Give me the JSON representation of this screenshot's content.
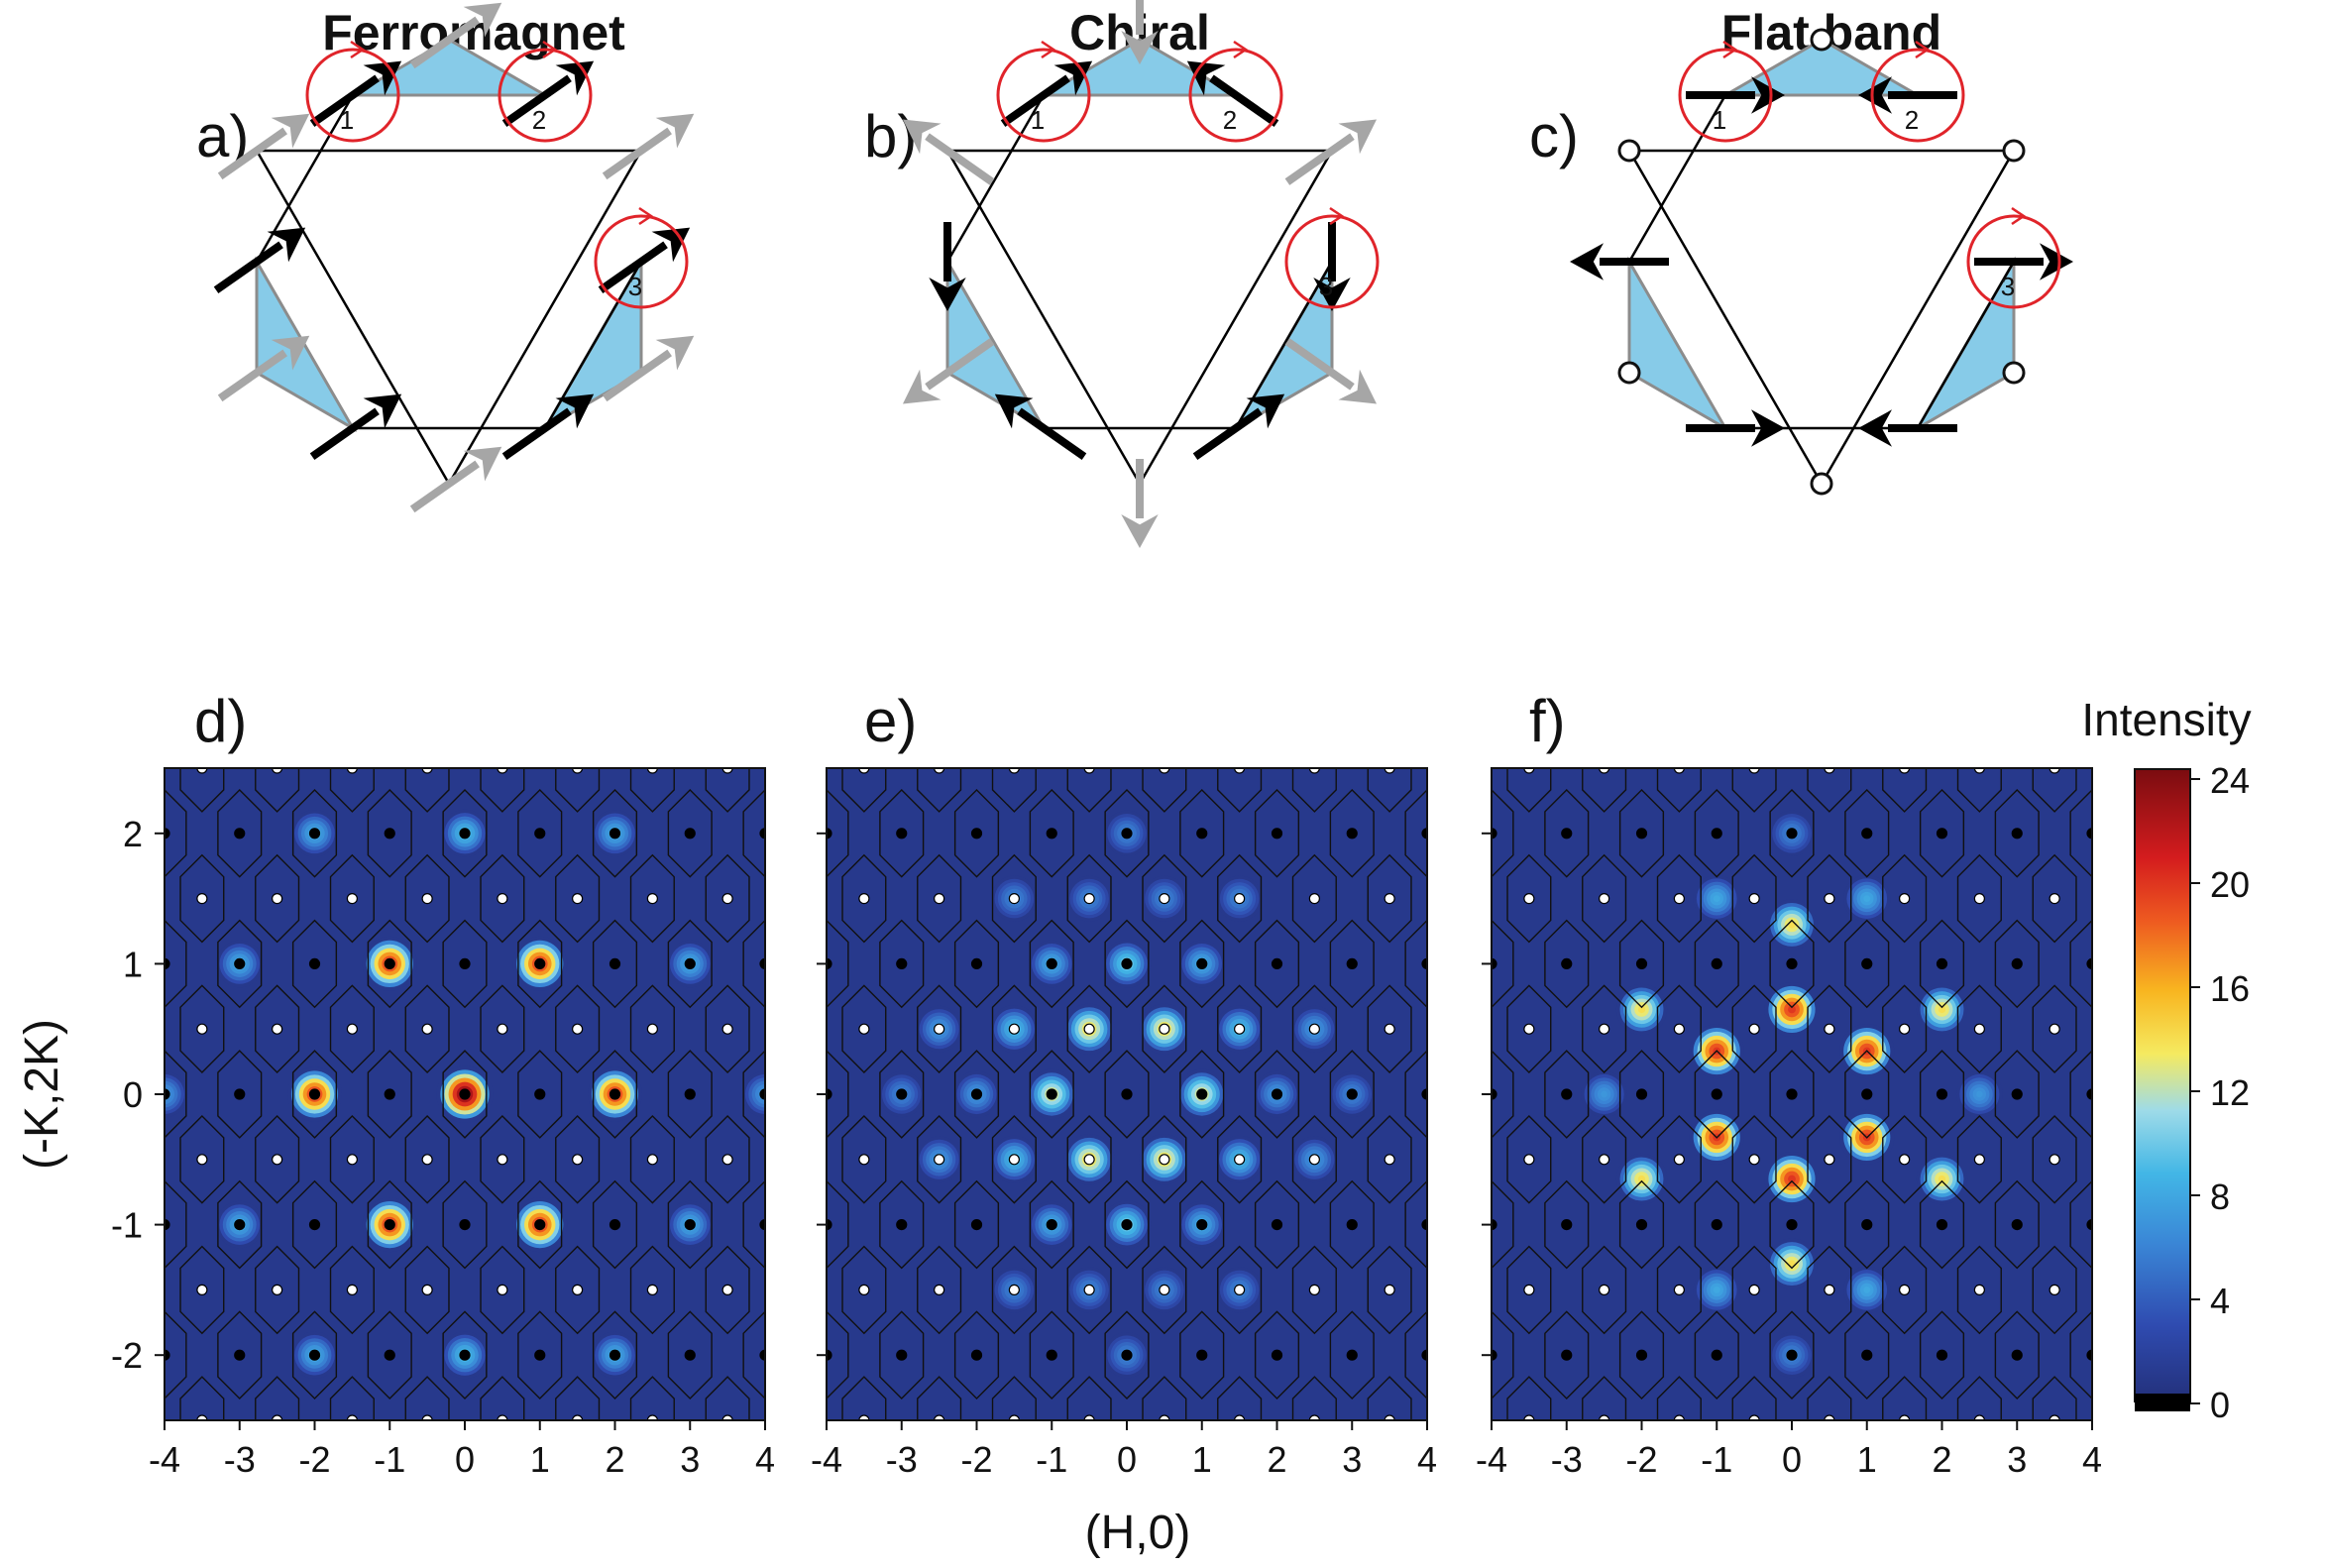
{
  "columns": [
    {
      "title": "Ferromagnet",
      "top_label": "a)",
      "bottom_label": "d)",
      "mode": "ferro"
    },
    {
      "title": "Chiral",
      "top_label": "b)",
      "bottom_label": "e)",
      "mode": "chiral"
    },
    {
      "title": "Flat band",
      "top_label": "c)",
      "bottom_label": "f)",
      "mode": "flat"
    }
  ],
  "site_labels": [
    "1",
    "2",
    "3"
  ],
  "colors": {
    "triangle_fill": "#87cbe8",
    "triangle_edge": "#8c8c8c",
    "lattice_line": "#000000",
    "moment_black": "#000000",
    "moment_gray": "#a6a6a6",
    "precession_circle": "#e0242a",
    "background": "#ffffff"
  },
  "chart_data": [
    {
      "type": "heatmap",
      "panel": "d)",
      "xlabel": "(H,0)",
      "ylabel": "(-K,2K)",
      "xlim": [
        -4,
        4
      ],
      "ylim": [
        -2.5,
        2.5
      ],
      "xticks": [
        -4,
        -3,
        -2,
        -1,
        0,
        1,
        2,
        3,
        4
      ],
      "yticks": [
        -2,
        -1,
        0,
        1,
        2
      ],
      "peaks": [
        {
          "h": 0,
          "k": 0,
          "intensity": 24
        },
        {
          "h": 2,
          "k": 0,
          "intensity": 20
        },
        {
          "h": -2,
          "k": 0,
          "intensity": 20
        },
        {
          "h": 1,
          "k": 1,
          "intensity": 20
        },
        {
          "h": -1,
          "k": 1,
          "intensity": 20
        },
        {
          "h": 1,
          "k": -1,
          "intensity": 20
        },
        {
          "h": -1,
          "k": -1,
          "intensity": 20
        },
        {
          "h": 0,
          "k": 2,
          "intensity": 9
        },
        {
          "h": 0,
          "k": -2,
          "intensity": 9
        },
        {
          "h": 2,
          "k": 2,
          "intensity": 8
        },
        {
          "h": -2,
          "k": 2,
          "intensity": 8
        },
        {
          "h": 2,
          "k": -2,
          "intensity": 8
        },
        {
          "h": -2,
          "k": -2,
          "intensity": 8
        },
        {
          "h": 3,
          "k": 1,
          "intensity": 8
        },
        {
          "h": -3,
          "k": 1,
          "intensity": 8
        },
        {
          "h": 3,
          "k": -1,
          "intensity": 8
        },
        {
          "h": -3,
          "k": -1,
          "intensity": 8
        },
        {
          "h": 4,
          "k": 0,
          "intensity": 7
        },
        {
          "h": -4,
          "k": 0,
          "intensity": 7
        }
      ]
    },
    {
      "type": "heatmap",
      "panel": "e)",
      "xlabel": "(H,0)",
      "ylabel": "(-K,2K)",
      "xlim": [
        -4,
        4
      ],
      "ylim": [
        -2.5,
        2.5
      ],
      "xticks": [
        -4,
        -3,
        -2,
        -1,
        0,
        1,
        2,
        3,
        4
      ],
      "yticks": [
        -2,
        -1,
        0,
        1,
        2
      ],
      "peaks": [
        {
          "h": 1,
          "k": 0,
          "intensity": 13
        },
        {
          "h": -1,
          "k": 0,
          "intensity": 13
        },
        {
          "h": 0.5,
          "k": 0.5,
          "intensity": 14
        },
        {
          "h": -0.5,
          "k": 0.5,
          "intensity": 14
        },
        {
          "h": 0.5,
          "k": -0.5,
          "intensity": 14
        },
        {
          "h": -0.5,
          "k": -0.5,
          "intensity": 14
        },
        {
          "h": 0,
          "k": 1,
          "intensity": 10
        },
        {
          "h": 0,
          "k": -1,
          "intensity": 10
        },
        {
          "h": 1.5,
          "k": 0.5,
          "intensity": 9
        },
        {
          "h": -1.5,
          "k": 0.5,
          "intensity": 9
        },
        {
          "h": 1.5,
          "k": -0.5,
          "intensity": 9
        },
        {
          "h": -1.5,
          "k": -0.5,
          "intensity": 9
        },
        {
          "h": 1,
          "k": 1,
          "intensity": 8
        },
        {
          "h": -1,
          "k": 1,
          "intensity": 8
        },
        {
          "h": 1,
          "k": -1,
          "intensity": 8
        },
        {
          "h": -1,
          "k": -1,
          "intensity": 8
        },
        {
          "h": 2,
          "k": 0,
          "intensity": 7
        },
        {
          "h": -2,
          "k": 0,
          "intensity": 7
        },
        {
          "h": 2.5,
          "k": 0.5,
          "intensity": 7
        },
        {
          "h": -2.5,
          "k": 0.5,
          "intensity": 7
        },
        {
          "h": 2.5,
          "k": -0.5,
          "intensity": 7
        },
        {
          "h": -2.5,
          "k": -0.5,
          "intensity": 7
        },
        {
          "h": 1.5,
          "k": 1.5,
          "intensity": 6
        },
        {
          "h": -1.5,
          "k": 1.5,
          "intensity": 6
        },
        {
          "h": 1.5,
          "k": -1.5,
          "intensity": 6
        },
        {
          "h": -1.5,
          "k": -1.5,
          "intensity": 6
        },
        {
          "h": 0.5,
          "k": 1.5,
          "intensity": 6
        },
        {
          "h": -0.5,
          "k": 1.5,
          "intensity": 6
        },
        {
          "h": 0.5,
          "k": -1.5,
          "intensity": 6
        },
        {
          "h": -0.5,
          "k": -1.5,
          "intensity": 6
        },
        {
          "h": 0,
          "k": 2,
          "intensity": 6
        },
        {
          "h": 0,
          "k": -2,
          "intensity": 6
        },
        {
          "h": 3,
          "k": 0,
          "intensity": 6
        },
        {
          "h": -3,
          "k": 0,
          "intensity": 6
        }
      ]
    },
    {
      "type": "heatmap",
      "panel": "f)",
      "xlabel": "(H,0)",
      "ylabel": "(-K,2K)",
      "xlim": [
        -4,
        4
      ],
      "ylim": [
        -2.5,
        2.5
      ],
      "xticks": [
        -4,
        -3,
        -2,
        -1,
        0,
        1,
        2,
        3,
        4
      ],
      "yticks": [
        -2,
        -1,
        0,
        1,
        2
      ],
      "colorbar": {
        "label": "Intensity",
        "min": 0,
        "max": 24,
        "ticks": [
          0,
          4,
          8,
          12,
          16,
          20,
          24
        ]
      },
      "peaks": [
        {
          "h": 0,
          "k": 0.65,
          "intensity": 20
        },
        {
          "h": 0,
          "k": -0.65,
          "intensity": 20
        },
        {
          "h": 1,
          "k": 0.33,
          "intensity": 20
        },
        {
          "h": -1,
          "k": 0.33,
          "intensity": 20
        },
        {
          "h": 1,
          "k": -0.33,
          "intensity": 20
        },
        {
          "h": -1,
          "k": -0.33,
          "intensity": 20
        },
        {
          "h": 0,
          "k": 1.3,
          "intensity": 14
        },
        {
          "h": 0,
          "k": -1.3,
          "intensity": 14
        },
        {
          "h": 2,
          "k": 0.65,
          "intensity": 14
        },
        {
          "h": -2,
          "k": 0.65,
          "intensity": 14
        },
        {
          "h": 2,
          "k": -0.65,
          "intensity": 14
        },
        {
          "h": -2,
          "k": -0.65,
          "intensity": 14
        },
        {
          "h": 1,
          "k": 1.5,
          "intensity": 8
        },
        {
          "h": -1,
          "k": 1.5,
          "intensity": 8
        },
        {
          "h": 1,
          "k": -1.5,
          "intensity": 8
        },
        {
          "h": -1,
          "k": -1.5,
          "intensity": 8
        },
        {
          "h": 2.5,
          "k": 0,
          "intensity": 7
        },
        {
          "h": -2.5,
          "k": 0,
          "intensity": 7
        },
        {
          "h": 0,
          "k": 2,
          "intensity": 6
        },
        {
          "h": 0,
          "k": -2,
          "intensity": 6
        }
      ]
    }
  ]
}
